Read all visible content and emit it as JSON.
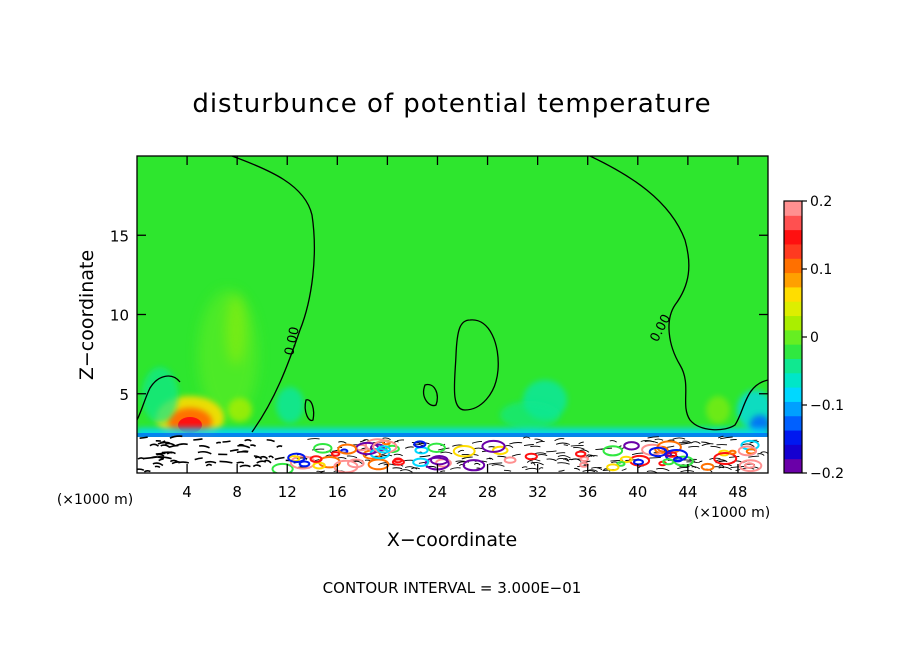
{
  "chart_data": {
    "type": "heatmap",
    "title": "disturbunce of potential temperature",
    "xlabel": "X−coordinate",
    "ylabel": "Z−coordinate",
    "x_unit_left": "(×1000 m)",
    "x_unit_right": "(×1000 m)",
    "footer": "CONTOUR INTERVAL = 3.000E−01",
    "xlim": [
      0,
      50.4
    ],
    "ylim": [
      0,
      20
    ],
    "xticks": [
      4,
      8,
      12,
      16,
      20,
      24,
      28,
      32,
      36,
      40,
      44,
      48
    ],
    "yticks": [
      5,
      10,
      15
    ],
    "contour_labels": [
      "0.00",
      "0.00"
    ],
    "colorbar": {
      "range": [
        -0.2,
        0.2
      ],
      "ticks": [
        0.2,
        0.1,
        0,
        -0.1,
        -0.2
      ],
      "tick_labels": [
        "0.2",
        "0.1",
        "0",
        "−0.1",
        "−0.2"
      ],
      "colors": [
        "#6a00a8",
        "#1500d0",
        "#0018f0",
        "#0060ff",
        "#00a0ff",
        "#00d8ff",
        "#00e6c8",
        "#10e890",
        "#30e840",
        "#66ee22",
        "#aaee00",
        "#ddee00",
        "#ffdd00",
        "#ffa000",
        "#ff7000",
        "#ff3a20",
        "#ff1010",
        "#ff5050",
        "#ff9090"
      ]
    },
    "background_color": "#2ee62e",
    "features": [
      {
        "name": "warm anomaly near x=4-5 km, z≈3 km",
        "x": 4.3,
        "z": 3.0,
        "value": 0.15
      },
      {
        "name": "isolated zero contour centered x≈26 km",
        "x": 26.5,
        "z": 7.0,
        "value": 0.0
      }
    ]
  }
}
